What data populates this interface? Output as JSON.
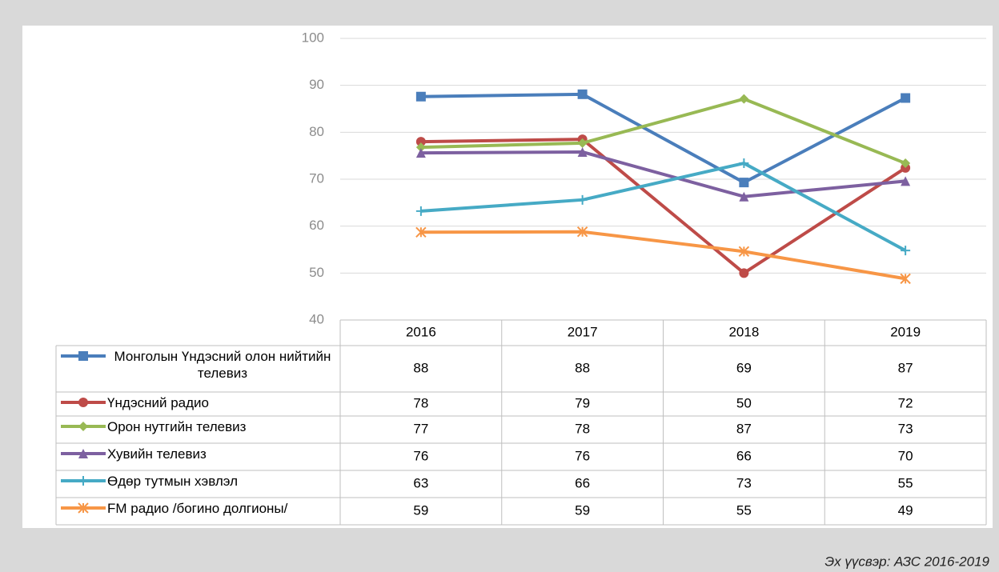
{
  "chart_data": {
    "type": "line",
    "categories": [
      "2016",
      "2017",
      "2018",
      "2019"
    ],
    "ylim": [
      40,
      100
    ],
    "yticks": [
      40,
      50,
      60,
      70,
      80,
      90,
      100
    ],
    "grid": true,
    "series": [
      {
        "name": "Монголын Үндэсний олон нийтийн телевиз",
        "color": "#4a7ebb",
        "marker": "square",
        "values": [
          87.6,
          88.1,
          69.3,
          87.3
        ],
        "value_labels": [
          "88",
          "88",
          "69",
          "87"
        ]
      },
      {
        "name": "Үндэсний радио",
        "color": "#be4b48",
        "marker": "circle",
        "values": [
          78.0,
          78.5,
          50.0,
          72.4
        ],
        "value_labels": [
          "78",
          "79",
          "50",
          "72"
        ]
      },
      {
        "name": "Орон нутгийн телевиз",
        "color": "#98b954",
        "marker": "diamond",
        "values": [
          76.8,
          77.7,
          87.1,
          73.4
        ],
        "value_labels": [
          "77",
          "78",
          "87",
          "73"
        ]
      },
      {
        "name": "Хувийн телевиз",
        "color": "#7d60a0",
        "marker": "triangle",
        "values": [
          75.6,
          75.8,
          66.3,
          69.6
        ],
        "value_labels": [
          "76",
          "76",
          "66",
          "70"
        ]
      },
      {
        "name": "Өдөр тутмын хэвлэл",
        "color": "#46aac5",
        "marker": "plus",
        "values": [
          63.2,
          65.6,
          73.4,
          54.8
        ],
        "value_labels": [
          "63",
          "66",
          "73",
          "55"
        ]
      },
      {
        "name": "FM радио /богино долгионы/",
        "color": "#f79646",
        "marker": "asterisk",
        "values": [
          58.7,
          58.8,
          54.6,
          48.8
        ],
        "value_labels": [
          "59",
          "59",
          "55",
          "49"
        ]
      }
    ],
    "source": "Эх үүсвэр: АЗС 2016-2019"
  }
}
